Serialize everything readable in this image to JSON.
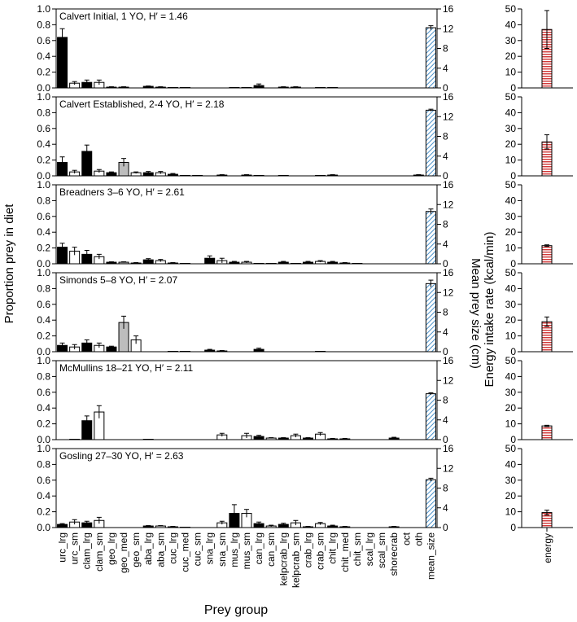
{
  "labels": {
    "ylabel_left": "Proportion prey in diet",
    "ylabel_mid": "Mean prey size (cm)",
    "ylabel_right": "Energy intake rate (kcal/min)",
    "xlabel": "Prey group",
    "energy_tick": "energy"
  },
  "colors": {
    "diet_black": "#000000",
    "diet_white": "#ffffff",
    "diet_grey": "#bdbdbd",
    "mean_size_hatch": "#4a90c8",
    "energy_hatch": "#cc2222"
  },
  "chart_data": {
    "type": "bar",
    "categories": [
      "urc_lrg",
      "urc_sm",
      "clam_lrg",
      "clam_sm",
      "geo_lrg",
      "geo_med",
      "geo_sm",
      "aba_lrg",
      "aba_sm",
      "cuc_lrg",
      "cuc_med",
      "cuc_sm",
      "sna_lrg",
      "sna_sm",
      "mus_lrg",
      "mus_sm",
      "can_lrg",
      "can_sm",
      "kelpcrab_lrg",
      "kelpcrab_sm",
      "crab_lrg",
      "crab_sm",
      "chit_lrg",
      "chit_med",
      "chit_sm",
      "scal_lrg",
      "scal_sm",
      "shorecrab",
      "oct",
      "oth",
      "mean_size"
    ],
    "category_fills": [
      "black",
      "white",
      "black",
      "white",
      "black",
      "grey",
      "white",
      "black",
      "white",
      "black",
      "white",
      "black",
      "black",
      "white",
      "black",
      "white",
      "black",
      "white",
      "black",
      "white",
      "black",
      "white",
      "black",
      "white",
      "white",
      "black",
      "white",
      "black",
      "white",
      "white",
      "hatch"
    ],
    "left_axis": {
      "ylim": [
        0,
        1.0
      ],
      "ticks": [
        "0.0",
        "0.2",
        "0.4",
        "0.6",
        "0.8",
        "1.0"
      ]
    },
    "right_axis": {
      "ylim": [
        0,
        16
      ],
      "ticks": [
        "0",
        "4",
        "8",
        "12",
        "16"
      ]
    },
    "energy_axis": {
      "ylim": [
        0,
        50
      ],
      "ticks": [
        "0",
        "10",
        "20",
        "30",
        "40",
        "50"
      ]
    },
    "panels": [
      {
        "title": "Calvert Initial, 1 YO, H′ = 1.46",
        "diet": [
          0.64,
          0.06,
          0.07,
          0.07,
          0.01,
          0.01,
          0,
          0.02,
          0.01,
          0.005,
          0.005,
          0,
          0,
          0,
          0.005,
          0.005,
          0.03,
          0,
          0.01,
          0.01,
          0,
          0.005,
          0.005,
          0,
          0,
          0,
          0,
          0,
          0,
          0
        ],
        "diet_err": [
          0.11,
          0.02,
          0.03,
          0.03,
          0.005,
          0.005,
          0,
          0.005,
          0.005,
          0,
          0,
          0,
          0,
          0,
          0,
          0,
          0.02,
          0,
          0.005,
          0.005,
          0,
          0,
          0,
          0,
          0,
          0,
          0,
          0,
          0,
          0
        ],
        "mean_size": 12.2,
        "mean_size_err": 0.4,
        "energy": 37,
        "energy_err": 12
      },
      {
        "title": "Calvert Established, 2-4 YO, H′ = 2.18",
        "diet": [
          0.17,
          0.05,
          0.31,
          0.06,
          0.04,
          0.17,
          0.04,
          0.04,
          0.04,
          0.02,
          0.005,
          0.005,
          0,
          0.01,
          0,
          0.01,
          0.005,
          0,
          0.005,
          0,
          0,
          0.005,
          0.01,
          0,
          0,
          0,
          0,
          0,
          0,
          0.01
        ],
        "diet_err": [
          0.07,
          0.02,
          0.08,
          0.02,
          0.01,
          0.05,
          0.01,
          0.015,
          0.015,
          0.01,
          0,
          0,
          0,
          0.005,
          0,
          0.005,
          0,
          0,
          0,
          0,
          0,
          0,
          0.005,
          0,
          0,
          0,
          0,
          0,
          0,
          0.005
        ],
        "mean_size": 13.3,
        "mean_size_err": 0.2,
        "energy": 21.5,
        "energy_err": 4.5
      },
      {
        "title": "Breadners 3–6 YO, H′ = 2.61",
        "diet": [
          0.21,
          0.16,
          0.12,
          0.09,
          0.02,
          0.02,
          0.01,
          0.05,
          0.04,
          0.01,
          0.005,
          0,
          0.07,
          0.04,
          0.02,
          0.02,
          0.005,
          0.005,
          0.02,
          0.005,
          0.02,
          0.03,
          0.02,
          0.01,
          0.005,
          0,
          0,
          0,
          0,
          0
        ],
        "diet_err": [
          0.05,
          0.05,
          0.05,
          0.03,
          0.005,
          0.005,
          0.005,
          0.015,
          0.015,
          0.005,
          0,
          0,
          0.03,
          0.03,
          0.01,
          0.01,
          0,
          0,
          0.01,
          0,
          0.01,
          0.01,
          0.01,
          0.005,
          0,
          0,
          0,
          0,
          0,
          0
        ],
        "mean_size": 10.6,
        "mean_size_err": 0.5,
        "energy": 11.5,
        "energy_err": 0.5
      },
      {
        "title": "Simonds 5–8 YO, H′ = 2.07",
        "diet": [
          0.08,
          0.06,
          0.11,
          0.08,
          0.06,
          0.37,
          0.15,
          0,
          0,
          0.005,
          0.005,
          0,
          0.02,
          0.01,
          0,
          0,
          0.03,
          0,
          0,
          0,
          0,
          0.005,
          0,
          0,
          0,
          0,
          0,
          0,
          0,
          0
        ],
        "diet_err": [
          0.03,
          0.03,
          0.04,
          0.03,
          0.01,
          0.08,
          0.05,
          0,
          0,
          0,
          0,
          0,
          0.01,
          0.005,
          0,
          0,
          0.015,
          0,
          0,
          0,
          0,
          0,
          0,
          0,
          0,
          0,
          0,
          0,
          0,
          0
        ],
        "mean_size": 13.8,
        "mean_size_err": 0.7,
        "energy": 19,
        "energy_err": 3
      },
      {
        "title": "McMullins 18–21 YO, H′ = 2.11",
        "diet": [
          0,
          0.005,
          0.24,
          0.35,
          0,
          0,
          0,
          0.005,
          0,
          0,
          0,
          0,
          0,
          0.06,
          0,
          0.05,
          0.04,
          0.02,
          0.02,
          0.05,
          0.02,
          0.07,
          0.01,
          0.01,
          0,
          0,
          0,
          0.02,
          0,
          0
        ],
        "diet_err": [
          0,
          0,
          0.06,
          0.08,
          0,
          0,
          0,
          0,
          0,
          0,
          0,
          0,
          0,
          0.02,
          0,
          0.03,
          0.015,
          0.005,
          0.005,
          0.02,
          0.005,
          0.02,
          0.005,
          0.005,
          0,
          0,
          0,
          0.01,
          0,
          0
        ],
        "mean_size": 9.3,
        "mean_size_err": 0.2,
        "energy": 8.7,
        "energy_err": 0.4
      },
      {
        "title": "Gosling 27–30 YO, H′ = 2.63",
        "diet": [
          0.04,
          0.07,
          0.06,
          0.09,
          0,
          0,
          0,
          0.02,
          0.02,
          0.01,
          0.005,
          0,
          0,
          0.06,
          0.18,
          0.18,
          0.05,
          0.02,
          0.04,
          0.06,
          0.01,
          0.05,
          0.02,
          0.01,
          0,
          0,
          0,
          0.01,
          0,
          0
        ],
        "diet_err": [
          0.01,
          0.03,
          0.02,
          0.04,
          0,
          0,
          0,
          0.005,
          0.005,
          0.005,
          0,
          0,
          0,
          0.02,
          0.11,
          0.05,
          0.02,
          0.01,
          0.015,
          0.03,
          0.005,
          0.015,
          0.01,
          0.005,
          0,
          0,
          0,
          0.005,
          0,
          0
        ],
        "mean_size": 9.7,
        "mean_size_err": 0.3,
        "energy": 9.5,
        "energy_err": 1.5
      }
    ]
  }
}
